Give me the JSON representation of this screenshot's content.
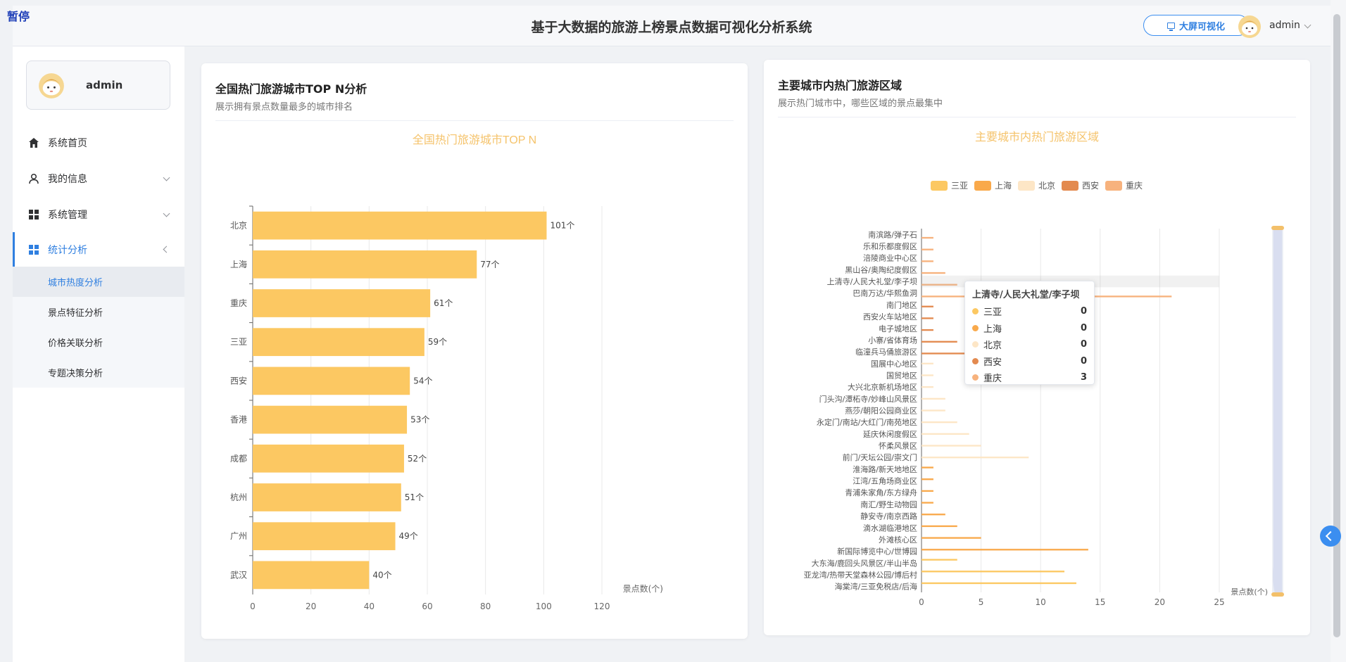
{
  "corner_label": "暂停",
  "header": {
    "title": "基于大数据的旅游上榜景点数据可视化分析系统",
    "bigscreen_label": "大屏可视化",
    "username": "admin"
  },
  "sidebar": {
    "username": "admin",
    "items": [
      {
        "label": "系统首页",
        "icon": "home-icon"
      },
      {
        "label": "我的信息",
        "icon": "user-icon"
      },
      {
        "label": "系统管理",
        "icon": "grid-icon"
      },
      {
        "label": "统计分析",
        "icon": "grid-icon"
      }
    ],
    "subitems": [
      {
        "label": "城市热度分析"
      },
      {
        "label": "景点特征分析"
      },
      {
        "label": "价格关联分析"
      },
      {
        "label": "专题决策分析"
      }
    ]
  },
  "left_card": {
    "title": "全国热门旅游城市TOP N分析",
    "subtitle": "展示拥有景点数量最多的城市排名"
  },
  "right_card": {
    "title": "主要城市内热门旅游区域",
    "subtitle": "展示热门城市中，哪些区域的景点最集中"
  },
  "tooltip": {
    "title": "上清寺/人民大礼堂/李子坝",
    "rows": [
      {
        "name": "三亚",
        "value": "0",
        "color": "#fcc862"
      },
      {
        "name": "上海",
        "value": "0",
        "color": "#f9a94b"
      },
      {
        "name": "北京",
        "value": "0",
        "color": "#fde6c6"
      },
      {
        "name": "西安",
        "value": "0",
        "color": "#e38a4f"
      },
      {
        "name": "重庆",
        "value": "3",
        "color": "#f7b27d"
      }
    ]
  },
  "chart_data": [
    {
      "type": "bar",
      "orientation": "horizontal",
      "title": "全国热门旅游城市TOP N",
      "xlabel": "景点数(个)",
      "ylabel": "",
      "xlim": [
        0,
        120
      ],
      "xticks": [
        0,
        20,
        40,
        60,
        80,
        100,
        120
      ],
      "value_suffix": "个",
      "color": "#fcc862",
      "categories": [
        "北京",
        "上海",
        "重庆",
        "三亚",
        "西安",
        "香港",
        "成都",
        "杭州",
        "广州",
        "武汉"
      ],
      "values": [
        101,
        77,
        61,
        59,
        54,
        53,
        52,
        51,
        49,
        40
      ]
    },
    {
      "type": "bar",
      "orientation": "horizontal",
      "title": "主要城市内热门旅游区域",
      "xlabel": "景点数(个)",
      "ylabel": "",
      "xlim": [
        0,
        25
      ],
      "xticks": [
        0,
        5,
        10,
        15,
        20,
        25
      ],
      "legend_position": "top",
      "categories": [
        "南滨路/弹子石",
        "乐和乐都度假区",
        "涪陵商业中心区",
        "黑山谷/奥陶纪度假区",
        "上清寺/人民大礼堂/李子坝",
        "巴南万达/华熙鱼洞",
        "南门地区",
        "西安火车站地区",
        "电子城地区",
        "小寨/省体育场",
        "临潼兵马俑旅游区",
        "国展中心地区",
        "国贸地区",
        "大兴北京新机场地区",
        "门头沟/潭柘寺/妙峰山风景区",
        "燕莎/朝阳公园商业区",
        "永定门/南站/大红门/南苑地区",
        "延庆休闲度假区",
        "怀柔风景区",
        "前门/天坛公园/崇文门",
        "淮海路/新天地地区",
        "江湾/五角场商业区",
        "青浦朱家角/东方绿舟",
        "南汇/野生动物园",
        "静安寺/南京西路",
        "滴水湖临港地区",
        "外滩核心区",
        "新国际博览中心/世博园",
        "大东海/鹿回头风景区/半山半岛",
        "亚龙湾/热带天堂森林公园/博后村",
        "海棠湾/三亚免税店/后海"
      ],
      "series": [
        {
          "name": "三亚",
          "color": "#fcc862",
          "values": [
            0,
            0,
            0,
            0,
            0,
            0,
            0,
            0,
            0,
            0,
            0,
            0,
            0,
            0,
            0,
            0,
            0,
            0,
            0,
            0,
            0,
            0,
            0,
            0,
            0,
            0,
            0,
            0,
            3,
            12,
            13
          ]
        },
        {
          "name": "上海",
          "color": "#f9a94b",
          "values": [
            0,
            0,
            0,
            0,
            0,
            0,
            0,
            0,
            0,
            0,
            0,
            0,
            0,
            0,
            0,
            0,
            0,
            0,
            0,
            0,
            1,
            1,
            1,
            1,
            2,
            3,
            5,
            14,
            0,
            0,
            0
          ]
        },
        {
          "name": "北京",
          "color": "#fde6c6",
          "values": [
            0,
            0,
            0,
            0,
            0,
            0,
            0,
            0,
            0,
            0,
            0,
            1,
            1,
            1,
            2,
            2,
            3,
            4,
            5,
            9,
            0,
            0,
            0,
            0,
            0,
            0,
            0,
            0,
            0,
            0,
            0
          ]
        },
        {
          "name": "西安",
          "color": "#e38a4f",
          "values": [
            0,
            0,
            0,
            0,
            0,
            0,
            1,
            1,
            1,
            3,
            4,
            0,
            0,
            0,
            0,
            0,
            0,
            0,
            0,
            0,
            0,
            0,
            0,
            0,
            0,
            0,
            0,
            0,
            0,
            0,
            0
          ]
        },
        {
          "name": "重庆",
          "color": "#f7b27d",
          "values": [
            1,
            1,
            1,
            2,
            3,
            21,
            0,
            0,
            0,
            0,
            0,
            0,
            0,
            0,
            0,
            0,
            0,
            0,
            0,
            0,
            0,
            0,
            0,
            0,
            0,
            0,
            0,
            0,
            0,
            0,
            0
          ]
        }
      ]
    }
  ]
}
